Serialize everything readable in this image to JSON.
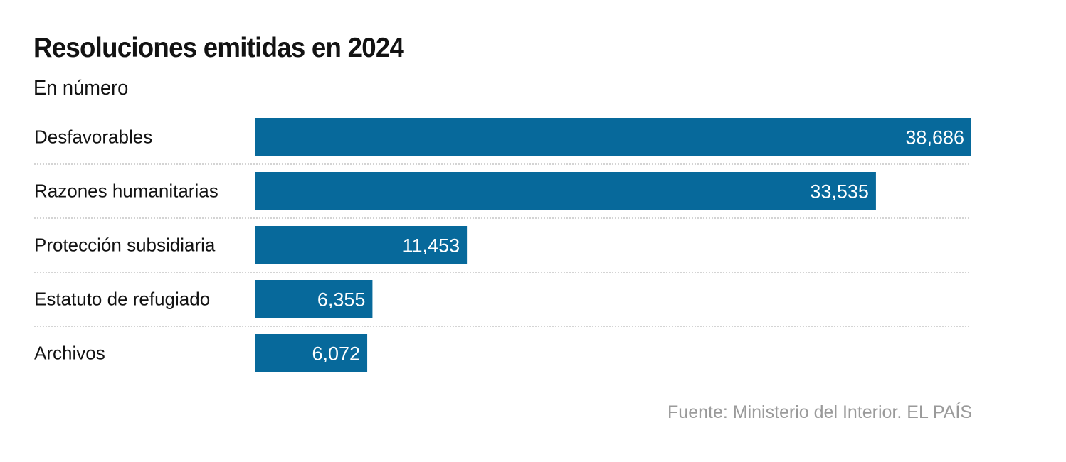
{
  "chart_data": {
    "type": "bar",
    "orientation": "horizontal",
    "title": "Resoluciones emitidas en 2024",
    "subtitle": "En número",
    "categories": [
      "Desfavorables",
      "Razones humanitarias",
      "Protección subsidiaria",
      "Estatuto de refugiado",
      "Archivos"
    ],
    "values": [
      38686,
      33535,
      11453,
      6355,
      6072
    ],
    "value_labels": [
      "38,686",
      "33,535",
      "11,453",
      "6,355",
      "6,072"
    ],
    "xlabel": "",
    "ylabel": "",
    "xlim": [
      0,
      38686
    ],
    "grid": false,
    "separators": "dotted",
    "bar_color": "#07699b",
    "legend": "none",
    "source": "Fuente: Ministerio del Interior. EL PAÍS"
  }
}
